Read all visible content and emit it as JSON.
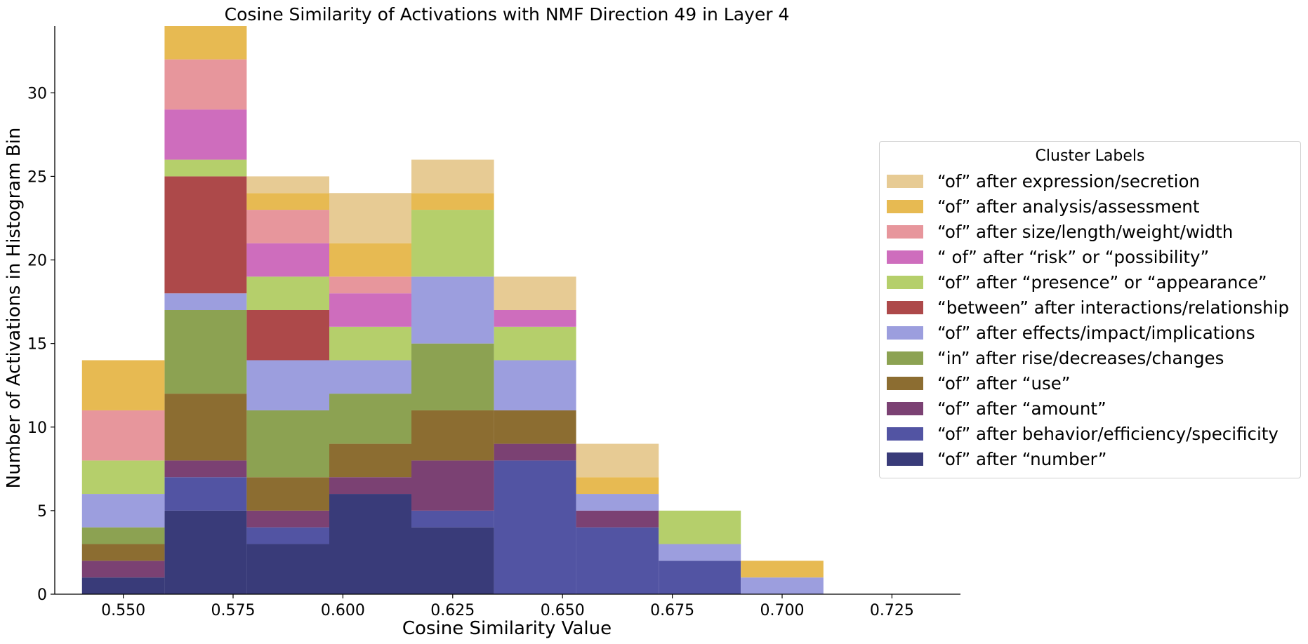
{
  "chart_data": {
    "type": "bar",
    "stacked": true,
    "title": "Cosine Similarity of Activations with NMF Direction 49 in Layer 4",
    "xlabel": "Cosine Similarity Value",
    "ylabel": "Number of Activations in Histogram Bin",
    "xlim": [
      0.5344,
      0.7406
    ],
    "ylim": [
      0,
      34
    ],
    "xticks": [
      0.55,
      0.575,
      0.6,
      0.625,
      0.65,
      0.675,
      0.7,
      0.725
    ],
    "xtick_labels": [
      "0.550",
      "0.575",
      "0.600",
      "0.625",
      "0.650",
      "0.675",
      "0.700",
      "0.725"
    ],
    "yticks": [
      0,
      5,
      10,
      15,
      20,
      25,
      30
    ],
    "ytick_labels": [
      "0",
      "5",
      "10",
      "15",
      "20",
      "25",
      "30"
    ],
    "bin_edges": [
      0.5406,
      0.5594,
      0.5781,
      0.5969,
      0.6156,
      0.6344,
      0.6531,
      0.6719,
      0.6906,
      0.7094
    ],
    "grid": false,
    "legend_title": "Cluster Labels",
    "legend_position": "right",
    "series": [
      {
        "name": "“of” after “number”",
        "color": "#393b79",
        "values": [
          1,
          5,
          3,
          6,
          4,
          0,
          0,
          0,
          0
        ]
      },
      {
        "name": "“of” after behavior/efficiency/specificity",
        "color": "#5254a3",
        "values": [
          0,
          2,
          1,
          0,
          1,
          8,
          4,
          2,
          0
        ]
      },
      {
        "name": "“of” after “amount”",
        "color": "#7b4173",
        "values": [
          1,
          1,
          1,
          1,
          3,
          1,
          1,
          0,
          0
        ]
      },
      {
        "name": "“of” after “use”",
        "color": "#8c6d31",
        "values": [
          1,
          4,
          2,
          2,
          3,
          2,
          0,
          0,
          0
        ]
      },
      {
        "name": "“in” after rise/decreases/changes",
        "color": "#8ca252",
        "values": [
          1,
          5,
          4,
          3,
          4,
          0,
          0,
          0,
          0
        ]
      },
      {
        "name": "“of” after effects/impact/implications",
        "color": "#9c9ede",
        "values": [
          2,
          1,
          3,
          2,
          4,
          3,
          1,
          1,
          1
        ]
      },
      {
        "name": "“between” after interactions/relationship",
        "color": "#ad494a",
        "values": [
          0,
          7,
          3,
          0,
          0,
          0,
          0,
          0,
          0
        ]
      },
      {
        "name": "“of” after “presence” or “appearance”",
        "color": "#b5cf6b",
        "values": [
          2,
          1,
          2,
          2,
          4,
          2,
          0,
          2,
          0
        ]
      },
      {
        "name": "“ of” after “risk” or “possibility”",
        "color": "#ce6dbd",
        "values": [
          0,
          3,
          2,
          2,
          0,
          1,
          0,
          0,
          0
        ]
      },
      {
        "name": "“of” after size/length/weight/width",
        "color": "#e7969c",
        "values": [
          3,
          3,
          2,
          1,
          0,
          0,
          0,
          0,
          0
        ]
      },
      {
        "name": "“of” after analysis/assessment",
        "color": "#e7ba52",
        "values": [
          3,
          2,
          1,
          2,
          1,
          0,
          1,
          0,
          1
        ]
      },
      {
        "name": "“of” after expression/secretion",
        "color": "#e7cb94",
        "values": [
          0,
          0,
          1,
          3,
          2,
          2,
          2,
          0,
          0
        ]
      }
    ]
  }
}
